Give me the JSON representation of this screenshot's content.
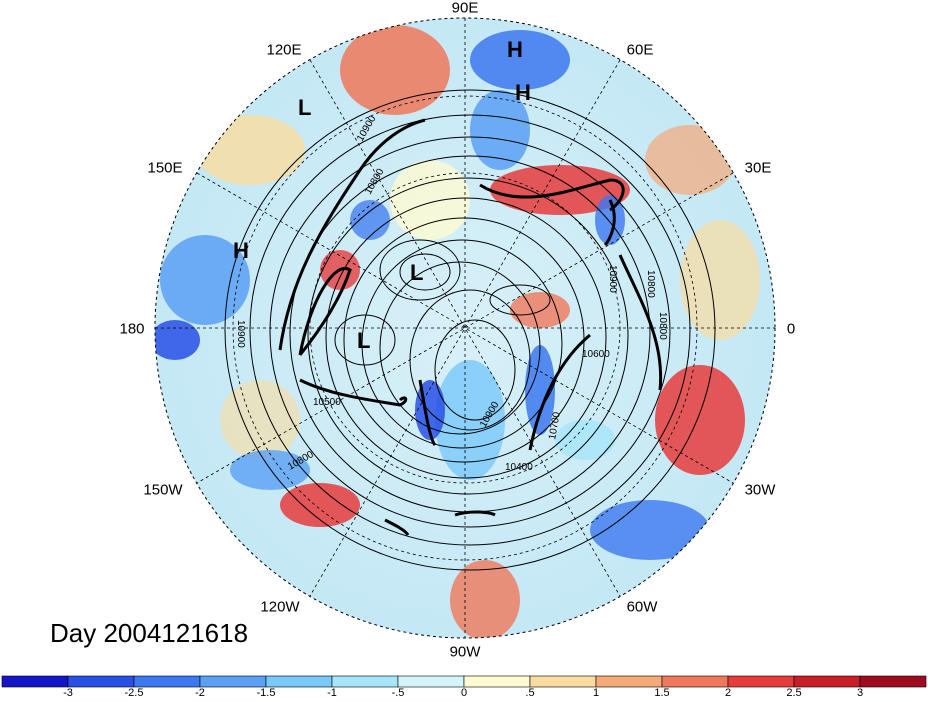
{
  "map": {
    "title": "Day 2004121618",
    "longitude_labels": [
      "90E",
      "60E",
      "30E",
      "0",
      "30W",
      "60W",
      "90W",
      "120W",
      "150W",
      "180",
      "150E",
      "120E"
    ],
    "pressure_systems": [
      "H",
      "H",
      "L",
      "H",
      "L",
      "L"
    ],
    "contour_labels": [
      "10900",
      "10800",
      "10800",
      "10900",
      "10900",
      "10800",
      "10900",
      "10700",
      "10600",
      "10400",
      "10500",
      "10800"
    ],
    "colorbar": {
      "ticks": [
        "-3",
        "-2.5",
        "-2",
        "-1.5",
        "-1",
        "-.5",
        "0",
        ".5",
        "1",
        "1.5",
        "2",
        "2.5",
        "3"
      ],
      "colors": [
        "#1414c8",
        "#2850e6",
        "#3c78f0",
        "#5aa0f5",
        "#78c8fa",
        "#a5e6fa",
        "#d2f5fa",
        "#fffad2",
        "#fadca0",
        "#f5aa78",
        "#f0785a",
        "#e63c3c",
        "#c81e28",
        "#a00a1e"
      ]
    }
  }
}
